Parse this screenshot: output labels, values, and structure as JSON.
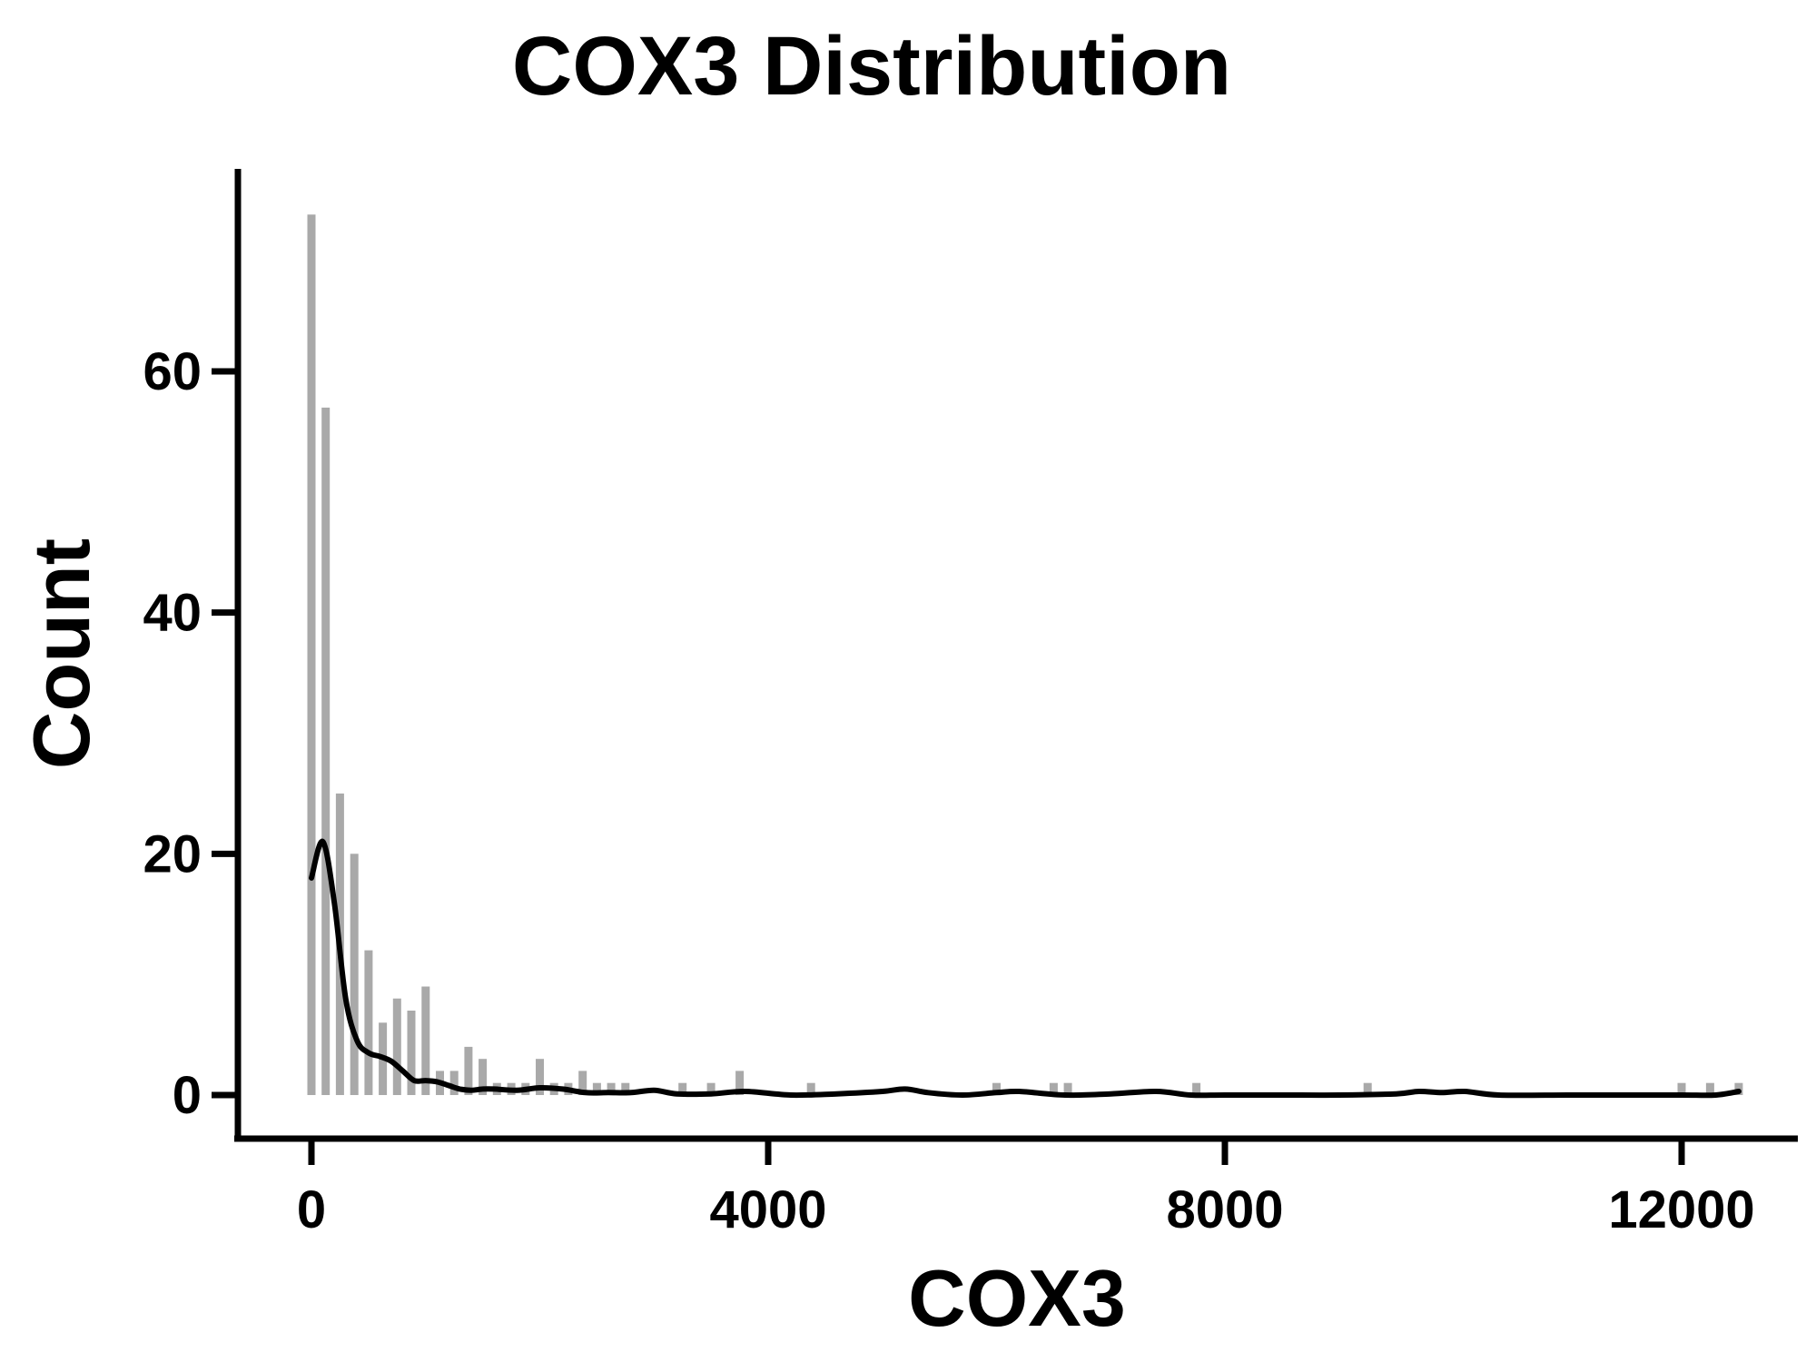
{
  "chart_data": {
    "type": "bar",
    "subtype": "histogram with density curve",
    "title": "COX3 Distribution",
    "xlabel": "COX3",
    "ylabel": "Count",
    "xlim": [
      -700,
      13200
    ],
    "ylim": [
      -4,
      77
    ],
    "x_ticks": [
      0,
      4000,
      8000,
      12000
    ],
    "x_tick_labels": [
      "0",
      "4000",
      "8000",
      "12000"
    ],
    "y_ticks": [
      0,
      20,
      40,
      60
    ],
    "y_tick_labels": [
      "0",
      "20",
      "40",
      "60"
    ],
    "grid": false,
    "legend": "none",
    "colors": {
      "bars": "#a9a9a9",
      "curve": "#000000",
      "axes": "#000000"
    },
    "bins": {
      "x": [
        0,
        125,
        250,
        375,
        500,
        625,
        750,
        875,
        1000,
        1125,
        1250,
        1375,
        1500,
        1625,
        1750,
        1875,
        2000,
        2125,
        2250,
        2375,
        2500,
        2625,
        2750,
        2875,
        3000,
        3125,
        3250,
        3375,
        3500,
        3625,
        3750,
        3875,
        4000,
        4125,
        4250,
        4375,
        4500,
        4625,
        4750,
        4875,
        5000,
        5125,
        5250,
        5375,
        5500,
        5625,
        5750,
        5875,
        6000,
        6125,
        6250,
        6375,
        6500,
        6625,
        6750,
        6875,
        7000,
        7125,
        7250,
        7375,
        7500,
        7625,
        7750,
        7875,
        8000,
        8125,
        8250,
        8375,
        8500,
        8625,
        8750,
        8875,
        9000,
        9125,
        9250,
        9375,
        9500,
        9625,
        9750,
        9875,
        10000,
        10125,
        10250,
        10375,
        10500,
        10625,
        10750,
        10875,
        11000,
        11125,
        11250,
        11375,
        11500,
        11625,
        11750,
        11875,
        12000,
        12125,
        12250,
        12375,
        12500
      ],
      "counts": [
        73,
        57,
        25,
        20,
        12,
        6,
        8,
        7,
        9,
        2,
        2,
        4,
        3,
        1,
        1,
        1,
        3,
        1,
        1,
        2,
        1,
        1,
        1,
        0,
        0,
        0,
        1,
        0,
        1,
        0,
        2,
        0,
        0,
        0,
        0,
        1,
        0,
        0,
        0,
        0,
        0,
        0,
        0,
        0,
        0,
        0,
        0,
        0,
        1,
        0,
        0,
        0,
        1,
        1,
        0,
        0,
        0,
        0,
        0,
        0,
        0,
        0,
        1,
        0,
        0,
        0,
        0,
        0,
        0,
        0,
        0,
        0,
        0,
        0,
        1,
        0,
        0,
        0,
        0,
        0,
        0,
        0,
        0,
        0,
        0,
        0,
        0,
        0,
        0,
        0,
        0,
        0,
        0,
        0,
        0,
        0,
        1,
        0,
        1,
        0,
        1
      ]
    },
    "density_curve": {
      "x": [
        0,
        100,
        200,
        300,
        400,
        500,
        600,
        700,
        800,
        900,
        1000,
        1100,
        1200,
        1300,
        1400,
        1500,
        1600,
        1800,
        2000,
        2200,
        2400,
        2600,
        2800,
        3000,
        3200,
        3500,
        3800,
        4200,
        4600,
        5000,
        5200,
        5400,
        5700,
        6000,
        6200,
        6600,
        7000,
        7400,
        7700,
        8000,
        8500,
        9000,
        9500,
        9700,
        9900,
        10100,
        10400,
        11000,
        11500,
        12000,
        12300,
        12500
      ],
      "y": [
        18,
        21,
        16,
        8,
        4.5,
        3.5,
        3.2,
        2.8,
        2,
        1.2,
        1.2,
        1.1,
        0.8,
        0.5,
        0.4,
        0.5,
        0.5,
        0.4,
        0.6,
        0.5,
        0.2,
        0.2,
        0.2,
        0.4,
        0.1,
        0.1,
        0.3,
        0.0,
        0.1,
        0.3,
        0.5,
        0.2,
        0.0,
        0.2,
        0.3,
        0.0,
        0.1,
        0.3,
        0.0,
        0.0,
        0.0,
        0.0,
        0.1,
        0.3,
        0.2,
        0.3,
        0.0,
        0.0,
        0.0,
        0.0,
        0.0,
        0.3
      ]
    }
  }
}
